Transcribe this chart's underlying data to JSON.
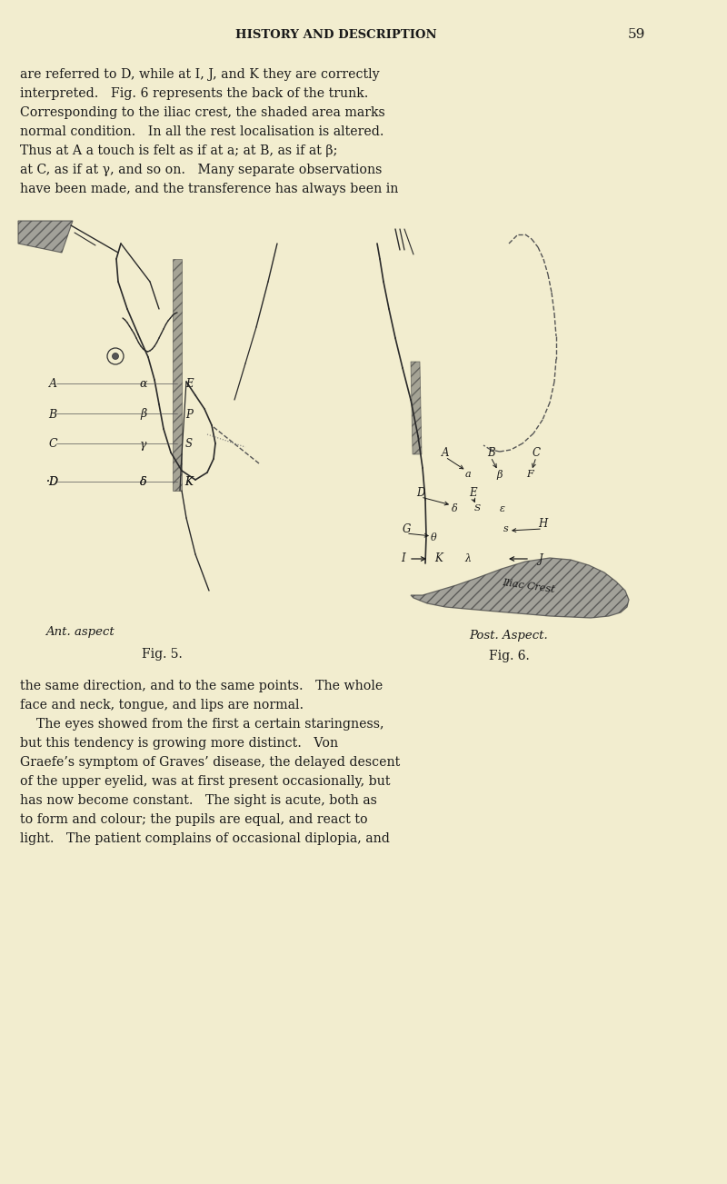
{
  "bg_color": "#f2edcf",
  "text_color": "#1a1a1a",
  "header_text": "HISTORY AND DESCRIPTION",
  "page_number": "59",
  "para1_lines": [
    "are referred to D, while at I, J, and K they are correctly",
    "interpreted.   Fig. 6 represents the back of the trunk.",
    "Corresponding to the iliac crest, the shaded area marks",
    "normal condition.   In all the rest localisation is altered.",
    "Thus at A a touch is felt as if at a; at B, as if at β;",
    "at C, as if at γ, and so on.   Many separate observations",
    "have been made, and the transference has always been in"
  ],
  "para2_lines": [
    "ℓthe same direction, and to the same points.   The whole",
    "ℓface and neck, tongue, and lips are normal.",
    "    The eyes showed from the first a certain staringness,",
    "but this tendency is growing more distinct.   Von",
    "Graefe’s symptom of Graves’ disease, the delayed descent",
    "of the upper eyelid, was at first present occasionally, but",
    "has now become constant.   The sight is acute, both as",
    "to form and colour; the pupils are equal, and react to",
    "light.   The patient complains of occasional diplopia, and"
  ],
  "fig5_caption": "Fig. 5.",
  "fig6_caption": "Fig. 6.",
  "ant_aspect": "Ant. aspect",
  "post_aspect": "Post. Aspect."
}
